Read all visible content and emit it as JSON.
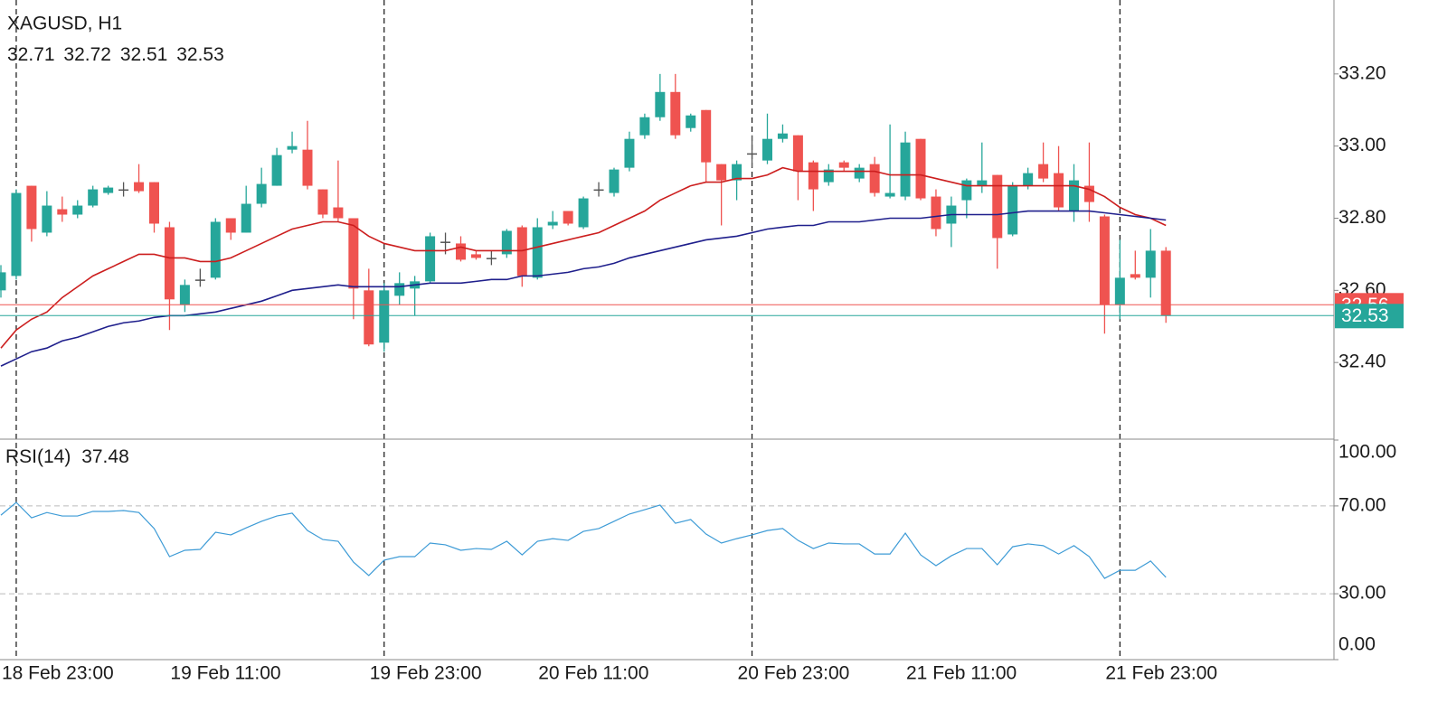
{
  "chart_data": [
    {
      "type": "candlestick",
      "title": "XAGUSD, H1",
      "categories": [
        null,
        "18 Feb 23:00",
        null,
        null,
        null,
        null,
        null,
        null,
        null,
        null,
        null,
        null,
        "19 Feb 11:00",
        null,
        null,
        null,
        null,
        null,
        null,
        null,
        null,
        null,
        null,
        null,
        null,
        "19 Feb 23:00",
        null,
        null,
        null,
        null,
        null,
        null,
        null,
        null,
        null,
        null,
        "20 Feb 11:00",
        null,
        null,
        null,
        null,
        null,
        null,
        null,
        null,
        null,
        null,
        null,
        null,
        "20 Feb 23:00",
        null,
        null,
        null,
        null,
        null,
        null,
        null,
        null,
        null,
        null,
        "21 Feb 11:00",
        null,
        null,
        null,
        null,
        null,
        null,
        null,
        null,
        null,
        null,
        null,
        null,
        "21 Feb 23:00",
        null,
        null,
        null
      ],
      "open": [
        32.6,
        32.64,
        32.89,
        32.76,
        32.825,
        32.81,
        32.835,
        32.87,
        32.88,
        32.9,
        32.9,
        32.775,
        32.56,
        32.63,
        32.635,
        32.8,
        32.76,
        32.84,
        32.89,
        32.99,
        32.99,
        32.88,
        32.83,
        32.8,
        32.6,
        32.455,
        32.585,
        32.605,
        32.625,
        32.735,
        32.73,
        32.7,
        32.69,
        32.7,
        32.775,
        32.635,
        32.78,
        32.82,
        32.775,
        32.88,
        32.87,
        32.94,
        33.03,
        33.08,
        33.15,
        33.05,
        33.1,
        32.95,
        32.905,
        32.98,
        32.96,
        33.02,
        33.03,
        32.955,
        32.9,
        32.955,
        32.91,
        32.95,
        32.86,
        32.86,
        33.02,
        32.86,
        32.785,
        32.85,
        32.89,
        32.92,
        32.755,
        32.89,
        32.95,
        32.925,
        32.82,
        32.89,
        32.805,
        32.56,
        32.645,
        32.635,
        32.71
      ],
      "high": [
        32.67,
        32.88,
        32.89,
        32.875,
        32.86,
        32.85,
        32.89,
        32.89,
        32.9,
        32.95,
        32.9,
        32.79,
        32.63,
        32.66,
        32.8,
        32.8,
        32.89,
        32.94,
        32.995,
        33.04,
        33.07,
        32.88,
        32.96,
        32.8,
        32.66,
        32.62,
        32.65,
        32.64,
        32.76,
        32.76,
        32.75,
        32.71,
        32.71,
        32.77,
        32.78,
        32.8,
        32.82,
        32.82,
        32.86,
        32.9,
        32.94,
        33.04,
        33.09,
        33.2,
        33.2,
        33.09,
        33.1,
        32.95,
        32.96,
        33.03,
        33.09,
        33.06,
        33.03,
        32.96,
        32.95,
        32.96,
        32.95,
        32.97,
        33.06,
        33.04,
        33.02,
        32.88,
        32.86,
        32.91,
        33.01,
        32.92,
        32.9,
        32.94,
        33.01,
        33.0,
        32.95,
        33.01,
        32.81,
        32.74,
        32.71,
        32.77,
        32.72
      ],
      "low": [
        32.58,
        32.63,
        32.735,
        32.75,
        32.79,
        32.8,
        32.83,
        32.865,
        32.86,
        32.87,
        32.76,
        32.49,
        32.54,
        32.61,
        32.63,
        32.74,
        32.76,
        32.83,
        32.89,
        32.98,
        32.88,
        32.8,
        32.79,
        32.52,
        32.445,
        32.43,
        32.56,
        32.53,
        32.62,
        32.7,
        32.68,
        32.685,
        32.67,
        32.69,
        32.61,
        32.63,
        32.77,
        32.78,
        32.77,
        32.86,
        32.86,
        32.93,
        33.02,
        33.07,
        33.02,
        33.04,
        32.9,
        32.78,
        32.85,
        32.94,
        32.95,
        33.01,
        32.85,
        32.82,
        32.89,
        32.93,
        32.9,
        32.86,
        32.855,
        32.85,
        32.85,
        32.75,
        32.72,
        32.8,
        32.87,
        32.66,
        32.75,
        32.88,
        32.9,
        32.82,
        32.79,
        32.79,
        32.48,
        32.52,
        32.63,
        32.58,
        32.51
      ],
      "close": [
        32.65,
        32.87,
        32.77,
        32.835,
        32.81,
        32.835,
        32.88,
        32.885,
        32.88,
        32.875,
        32.785,
        32.575,
        32.615,
        32.63,
        32.79,
        32.76,
        32.84,
        32.895,
        32.975,
        33.0,
        32.89,
        32.81,
        32.8,
        32.605,
        32.45,
        32.6,
        32.62,
        32.625,
        32.75,
        32.735,
        32.685,
        32.69,
        32.69,
        32.765,
        32.64,
        32.775,
        32.79,
        32.785,
        32.855,
        32.88,
        32.935,
        33.02,
        33.08,
        33.15,
        33.03,
        33.085,
        32.955,
        32.905,
        32.95,
        32.98,
        33.02,
        33.035,
        32.93,
        32.88,
        32.935,
        32.94,
        32.94,
        32.87,
        32.87,
        33.01,
        32.855,
        32.77,
        32.835,
        32.905,
        32.905,
        32.745,
        32.89,
        32.925,
        32.91,
        32.83,
        32.905,
        32.845,
        32.56,
        32.635,
        32.635,
        32.71,
        32.53
      ],
      "up_color": "#26a69a",
      "down_color": "#ef5350",
      "neutral_color": "#555555",
      "lines": [
        {
          "color": "#cc1e1e",
          "values": [
            32.44,
            32.49,
            32.52,
            32.54,
            32.58,
            32.61,
            32.64,
            32.66,
            32.68,
            32.7,
            32.7,
            32.69,
            32.69,
            32.68,
            32.68,
            32.69,
            32.71,
            32.73,
            32.75,
            32.77,
            32.78,
            32.79,
            32.79,
            32.78,
            32.75,
            32.73,
            32.72,
            32.71,
            32.71,
            32.71,
            32.72,
            32.71,
            32.71,
            32.71,
            32.71,
            32.72,
            32.73,
            32.74,
            32.75,
            32.76,
            32.78,
            32.8,
            32.82,
            32.85,
            32.87,
            32.89,
            32.9,
            32.9,
            32.91,
            32.91,
            32.92,
            32.94,
            32.93,
            32.93,
            32.93,
            32.93,
            32.93,
            32.93,
            32.92,
            32.92,
            32.92,
            32.91,
            32.9,
            32.89,
            32.89,
            32.89,
            32.89,
            32.89,
            32.89,
            32.89,
            32.89,
            32.88,
            32.86,
            32.83,
            32.81,
            32.8,
            32.78
          ]
        },
        {
          "color": "#1f1f8c",
          "values": [
            32.39,
            32.41,
            32.43,
            32.44,
            32.46,
            32.47,
            32.485,
            32.5,
            32.51,
            32.515,
            32.525,
            32.53,
            32.53,
            32.535,
            32.54,
            32.55,
            32.56,
            32.57,
            32.585,
            32.6,
            32.605,
            32.61,
            32.615,
            32.61,
            32.61,
            32.61,
            32.61,
            32.615,
            32.62,
            32.62,
            32.62,
            32.625,
            32.63,
            32.63,
            32.64,
            32.64,
            32.645,
            32.65,
            32.66,
            32.665,
            32.675,
            32.69,
            32.7,
            32.71,
            32.72,
            32.73,
            32.74,
            32.745,
            32.75,
            32.76,
            32.77,
            32.775,
            32.78,
            32.78,
            32.79,
            32.79,
            32.79,
            32.795,
            32.8,
            32.8,
            32.8,
            32.805,
            32.81,
            32.81,
            32.81,
            32.81,
            32.815,
            32.82,
            32.82,
            32.82,
            32.82,
            32.82,
            32.815,
            32.81,
            32.805,
            32.8,
            32.795
          ]
        }
      ],
      "price_lines": [
        {
          "value": 32.56,
          "color": "#ef5350"
        },
        {
          "value": 32.53,
          "color": "#26a69a"
        }
      ],
      "ylim": [
        32.19,
        33.405
      ],
      "yticks": [
        {
          "value": 32.4,
          "label": "32.40"
        },
        {
          "value": 32.6,
          "label": "32.60"
        },
        {
          "value": 32.8,
          "label": "32.80"
        },
        {
          "value": 33,
          "label": "33.00"
        },
        {
          "value": 33.2,
          "label": "33.20"
        }
      ]
    },
    {
      "type": "line",
      "title": "RSI(14)",
      "color": "#3d9bd6",
      "values": [
        65.8,
        71.6,
        64.6,
        67,
        65.4,
        65.4,
        67.5,
        67.5,
        67.9,
        67,
        59.7,
        46.9,
        49.8,
        50.2,
        58,
        56.8,
        60,
        63,
        65.4,
        66.7,
        58.8,
        54.7,
        53.9,
        44.4,
        38.3,
        45.3,
        46.9,
        46.9,
        53.1,
        52.3,
        49.8,
        50.6,
        50.2,
        53.9,
        47.7,
        53.9,
        55.1,
        54.3,
        58.4,
        59.7,
        63,
        66.3,
        68.3,
        70.4,
        62.1,
        63.8,
        57.2,
        53.1,
        55.1,
        56.8,
        58.8,
        59.7,
        54.3,
        50.6,
        53.1,
        52.7,
        52.7,
        48.1,
        48.1,
        57.6,
        47.7,
        42.8,
        47.3,
        50.6,
        50.6,
        43.2,
        51.4,
        52.7,
        51.9,
        48.1,
        51.9,
        46.9,
        37,
        40.7,
        40.7,
        44.9,
        37.48
      ],
      "ylim": [
        0,
        100
      ],
      "yticks": [
        {
          "value": 0,
          "label": "0.00"
        },
        {
          "value": 30,
          "label": "30.00"
        },
        {
          "value": 70,
          "label": "70.00"
        },
        {
          "value": 100,
          "label": "100.00"
        }
      ]
    }
  ]
}
